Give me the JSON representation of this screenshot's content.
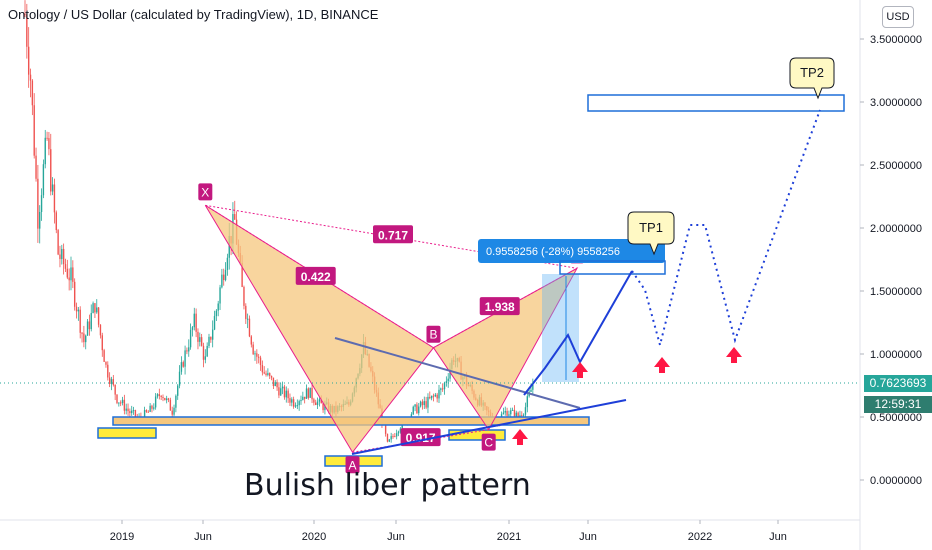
{
  "title": "Ontology / US Dollar (calculated by TradingView), 1D, BINANCE",
  "currency_button": "USD",
  "current_price": "0.7623693",
  "countdown": "12:59:31",
  "caption": "Bulish liber pattern",
  "colors": {
    "candle_up": "#26a69a",
    "candle_down": "#ef5350",
    "pattern_fill": "#f5c77e",
    "pattern_edge": "#e91e8c",
    "label_bg": "#c2187f",
    "projection": "#1e3fd8",
    "price_line": "#26a69a",
    "tag_bg": "#2962ff"
  },
  "chart_data": {
    "type": "candlestick",
    "y_axis": {
      "min": 0.0,
      "max": 3.7,
      "ticks": [
        {
          "value": 0.0,
          "label": "0.0000000"
        },
        {
          "value": 0.5,
          "label": "0.5000000"
        },
        {
          "value": 1.0,
          "label": "1.0000000"
        },
        {
          "value": 1.5,
          "label": "1.5000000"
        },
        {
          "value": 2.0,
          "label": "2.0000000"
        },
        {
          "value": 2.5,
          "label": "2.5000000"
        },
        {
          "value": 3.0,
          "label": "3.0000000"
        },
        {
          "value": 3.5,
          "label": "3.5000000"
        }
      ]
    },
    "x_axis": {
      "ticks": [
        "2019",
        "Jun",
        "2020",
        "Jun",
        "2021",
        "Jun",
        "2022",
        "Jun"
      ]
    },
    "price_anchors": [
      {
        "t": 0,
        "v": 3.7
      },
      {
        "t": 3,
        "v": 3.2
      },
      {
        "t": 7,
        "v": 2.1
      },
      {
        "t": 12,
        "v": 2.7
      },
      {
        "t": 18,
        "v": 1.8
      },
      {
        "t": 25,
        "v": 1.6
      },
      {
        "t": 32,
        "v": 1.1
      },
      {
        "t": 38,
        "v": 1.4
      },
      {
        "t": 44,
        "v": 0.9
      },
      {
        "t": 50,
        "v": 0.65
      },
      {
        "t": 56,
        "v": 0.55
      },
      {
        "t": 62,
        "v": 0.48
      },
      {
        "t": 68,
        "v": 0.55
      },
      {
        "t": 74,
        "v": 0.7
      },
      {
        "t": 80,
        "v": 0.55
      },
      {
        "t": 86,
        "v": 0.95
      },
      {
        "t": 92,
        "v": 1.25
      },
      {
        "t": 98,
        "v": 0.95
      },
      {
        "t": 104,
        "v": 1.35
      },
      {
        "t": 110,
        "v": 1.85
      },
      {
        "t": 114,
        "v": 2.05
      },
      {
        "t": 118,
        "v": 1.5
      },
      {
        "t": 124,
        "v": 1.05
      },
      {
        "t": 130,
        "v": 0.85
      },
      {
        "t": 138,
        "v": 0.72
      },
      {
        "t": 146,
        "v": 0.62
      },
      {
        "t": 154,
        "v": 0.7
      },
      {
        "t": 160,
        "v": 0.6
      },
      {
        "t": 168,
        "v": 0.55
      },
      {
        "t": 176,
        "v": 0.6
      },
      {
        "t": 184,
        "v": 1.05
      },
      {
        "t": 188,
        "v": 0.85
      },
      {
        "t": 193,
        "v": 0.55
      },
      {
        "t": 197,
        "v": 0.28
      },
      {
        "t": 203,
        "v": 0.42
      },
      {
        "t": 211,
        "v": 0.55
      },
      {
        "t": 219,
        "v": 0.62
      },
      {
        "t": 227,
        "v": 0.72
      },
      {
        "t": 233,
        "v": 0.98
      },
      {
        "t": 238,
        "v": 0.82
      },
      {
        "t": 244,
        "v": 0.68
      },
      {
        "t": 250,
        "v": 0.55
      },
      {
        "t": 256,
        "v": 0.47
      },
      {
        "t": 262,
        "v": 0.55
      },
      {
        "t": 268,
        "v": 0.5
      },
      {
        "t": 272,
        "v": 0.58
      },
      {
        "t": 276,
        "v": 0.76
      }
    ],
    "pattern": {
      "points": [
        {
          "label": "X",
          "t": 98,
          "v": 2.18
        },
        {
          "label": "A",
          "t": 178,
          "v": 0.22
        },
        {
          "label": "B",
          "t": 222,
          "v": 1.05
        },
        {
          "label": "C",
          "t": 252,
          "v": 0.4
        },
        {
          "label": "D",
          "t": 300,
          "v": 1.68
        }
      ],
      "ratios": [
        {
          "label": "0.422",
          "t": 158,
          "v": 1.62
        },
        {
          "label": "0.717",
          "t": 200,
          "v": 1.95
        },
        {
          "label": "0.917",
          "t": 215,
          "v": 0.34
        },
        {
          "label": "1.938",
          "t": 258,
          "v": 1.38
        }
      ],
      "prz_label": "0.9558256 (-28%) 9558256"
    },
    "targets": [
      {
        "label": "TP1",
        "t": 342,
        "v": 2.0
      },
      {
        "label": "TP2",
        "t": 440,
        "v": 3.2
      }
    ]
  }
}
